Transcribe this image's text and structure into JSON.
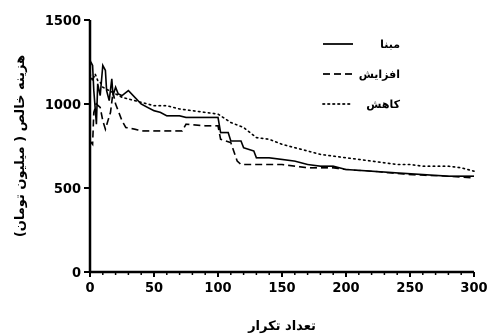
{
  "chart_data": {
    "type": "line",
    "xlabel": "تعداد تکرار",
    "ylabel": "هزینه خالص ( میلیون تومان)",
    "xlim": [
      0,
      300
    ],
    "ylim": [
      0,
      1500
    ],
    "x_ticks": [
      "0",
      "50",
      "100",
      "150",
      "200",
      "250",
      "300"
    ],
    "y_ticks": [
      "0",
      "500",
      "1000",
      "1500"
    ],
    "grid": false,
    "legend": "top-right",
    "series": [
      {
        "name": "مبنا",
        "style": "solid",
        "color": "#000000",
        "points": [
          [
            0,
            1260
          ],
          [
            2,
            1230
          ],
          [
            3,
            1080
          ],
          [
            5,
            880
          ],
          [
            6,
            1120
          ],
          [
            8,
            1050
          ],
          [
            10,
            1230
          ],
          [
            12,
            1200
          ],
          [
            13,
            1080
          ],
          [
            15,
            1020
          ],
          [
            17,
            1150
          ],
          [
            18,
            1050
          ],
          [
            20,
            1100
          ],
          [
            22,
            1060
          ],
          [
            25,
            1050
          ],
          [
            30,
            1080
          ],
          [
            35,
            1040
          ],
          [
            40,
            1000
          ],
          [
            45,
            980
          ],
          [
            50,
            960
          ],
          [
            55,
            950
          ],
          [
            60,
            930
          ],
          [
            70,
            930
          ],
          [
            75,
            920
          ],
          [
            100,
            920
          ],
          [
            102,
            830
          ],
          [
            108,
            830
          ],
          [
            110,
            780
          ],
          [
            118,
            780
          ],
          [
            120,
            740
          ],
          [
            128,
            720
          ],
          [
            130,
            680
          ],
          [
            140,
            680
          ],
          [
            150,
            670
          ],
          [
            160,
            660
          ],
          [
            170,
            640
          ],
          [
            180,
            630
          ],
          [
            190,
            630
          ],
          [
            200,
            610
          ],
          [
            220,
            600
          ],
          [
            240,
            590
          ],
          [
            260,
            580
          ],
          [
            280,
            570
          ],
          [
            300,
            570
          ]
        ]
      },
      {
        "name": "افزایش",
        "style": "dashed",
        "color": "#000000",
        "points": [
          [
            0,
            780
          ],
          [
            2,
            760
          ],
          [
            3,
            950
          ],
          [
            5,
            1000
          ],
          [
            8,
            980
          ],
          [
            10,
            900
          ],
          [
            12,
            850
          ],
          [
            14,
            900
          ],
          [
            16,
            950
          ],
          [
            18,
            1070
          ],
          [
            20,
            1000
          ],
          [
            22,
            960
          ],
          [
            25,
            900
          ],
          [
            28,
            860
          ],
          [
            35,
            850
          ],
          [
            40,
            840
          ],
          [
            50,
            840
          ],
          [
            60,
            840
          ],
          [
            72,
            840
          ],
          [
            75,
            880
          ],
          [
            90,
            870
          ],
          [
            100,
            870
          ],
          [
            102,
            790
          ],
          [
            110,
            770
          ],
          [
            115,
            660
          ],
          [
            118,
            640
          ],
          [
            120,
            640
          ],
          [
            150,
            640
          ],
          [
            170,
            620
          ],
          [
            190,
            620
          ],
          [
            200,
            610
          ],
          [
            220,
            600
          ],
          [
            250,
            580
          ],
          [
            280,
            570
          ],
          [
            300,
            560
          ]
        ]
      },
      {
        "name": "کاهش",
        "style": "dotted",
        "color": "#000000",
        "points": [
          [
            0,
            1180
          ],
          [
            2,
            1140
          ],
          [
            4,
            1180
          ],
          [
            6,
            1140
          ],
          [
            8,
            1130
          ],
          [
            10,
            1100
          ],
          [
            15,
            1080
          ],
          [
            20,
            1060
          ],
          [
            25,
            1040
          ],
          [
            30,
            1030
          ],
          [
            40,
            1010
          ],
          [
            50,
            990
          ],
          [
            60,
            990
          ],
          [
            70,
            970
          ],
          [
            80,
            960
          ],
          [
            90,
            950
          ],
          [
            100,
            940
          ],
          [
            110,
            890
          ],
          [
            120,
            860
          ],
          [
            130,
            800
          ],
          [
            140,
            790
          ],
          [
            150,
            760
          ],
          [
            160,
            740
          ],
          [
            170,
            720
          ],
          [
            180,
            700
          ],
          [
            190,
            690
          ],
          [
            200,
            680
          ],
          [
            210,
            670
          ],
          [
            220,
            660
          ],
          [
            230,
            650
          ],
          [
            240,
            640
          ],
          [
            250,
            640
          ],
          [
            260,
            630
          ],
          [
            270,
            630
          ],
          [
            280,
            630
          ],
          [
            290,
            620
          ],
          [
            300,
            600
          ]
        ]
      }
    ]
  }
}
